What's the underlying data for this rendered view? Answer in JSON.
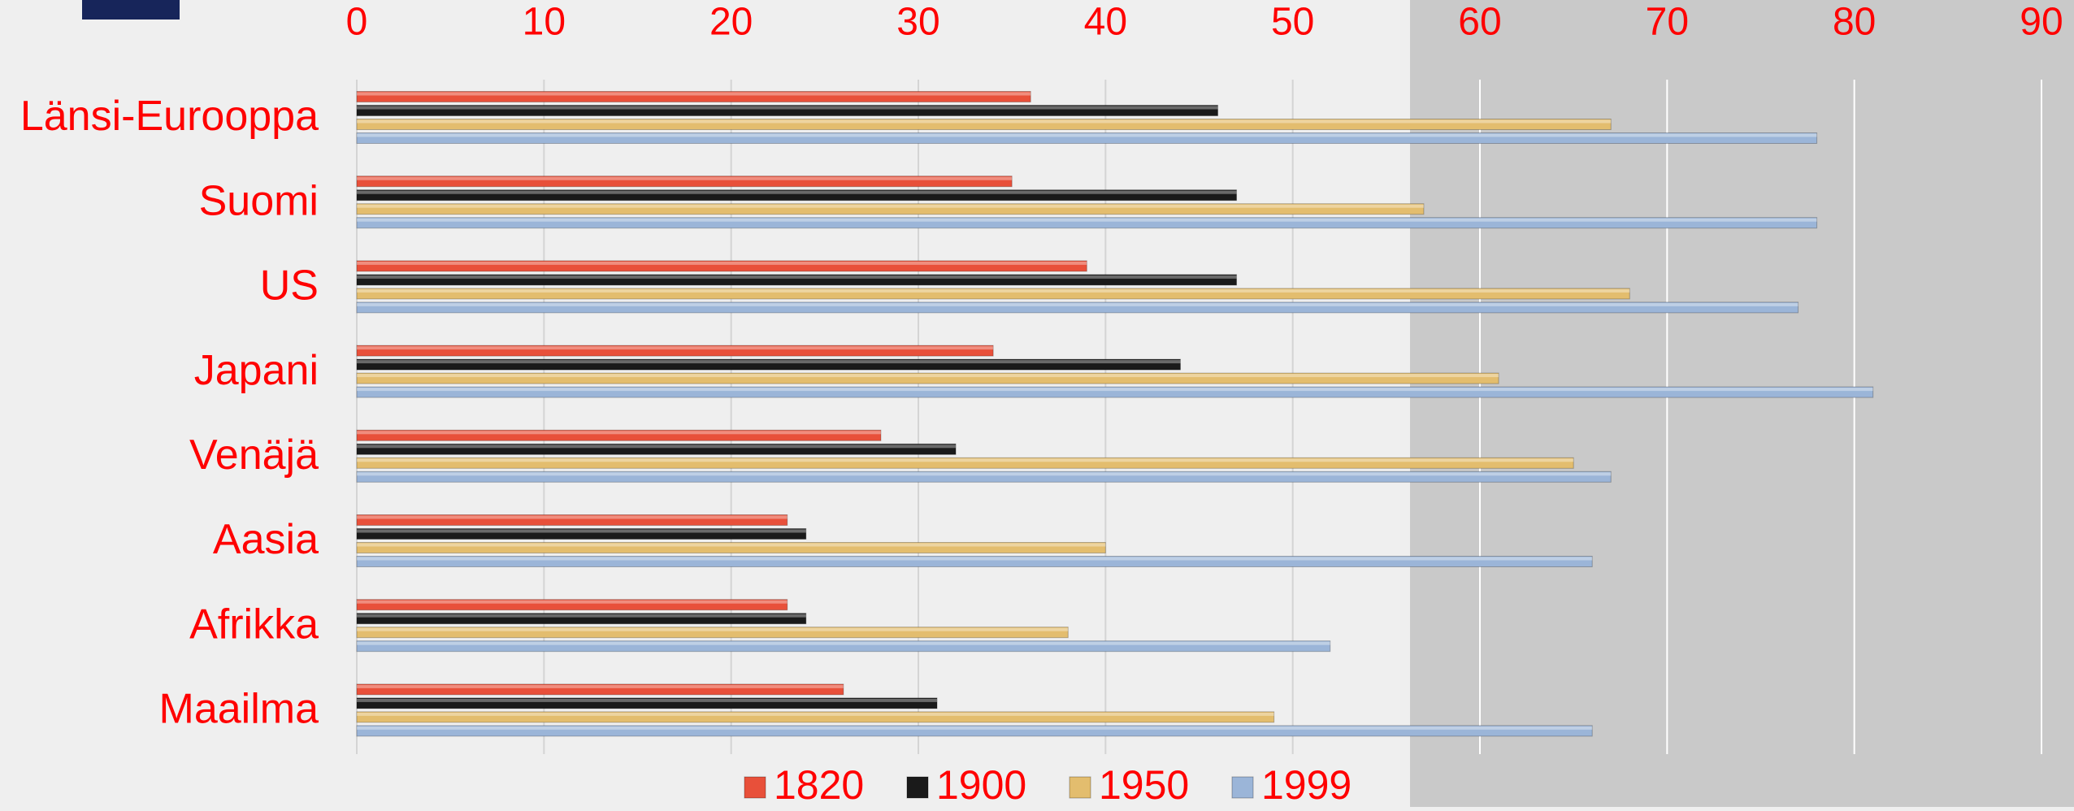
{
  "chart_data": {
    "type": "bar",
    "orientation": "horizontal",
    "categories": [
      "Länsi-Eurooppa",
      "Suomi",
      "US",
      "Japani",
      "Venäjä",
      "Aasia",
      "Afrikka",
      "Maailma"
    ],
    "series": [
      {
        "name": "1820",
        "color": "#e8503a",
        "values": [
          36,
          35,
          39,
          34,
          28,
          23,
          23,
          26
        ]
      },
      {
        "name": "1900",
        "color": "#1a1a1a",
        "values": [
          46,
          47,
          47,
          44,
          32,
          24,
          24,
          31
        ]
      },
      {
        "name": "1950",
        "color": "#e3bd6e",
        "values": [
          67,
          57,
          68,
          61,
          65,
          40,
          38,
          49
        ]
      },
      {
        "name": "1999",
        "color": "#9bb5d8",
        "values": [
          78,
          78,
          77,
          81,
          67,
          66,
          52,
          66
        ]
      }
    ],
    "xlim": [
      0,
      90
    ],
    "xticks": [
      0,
      10,
      20,
      30,
      40,
      50,
      60,
      70,
      80,
      90
    ],
    "grid": true,
    "legend": "bottom"
  }
}
